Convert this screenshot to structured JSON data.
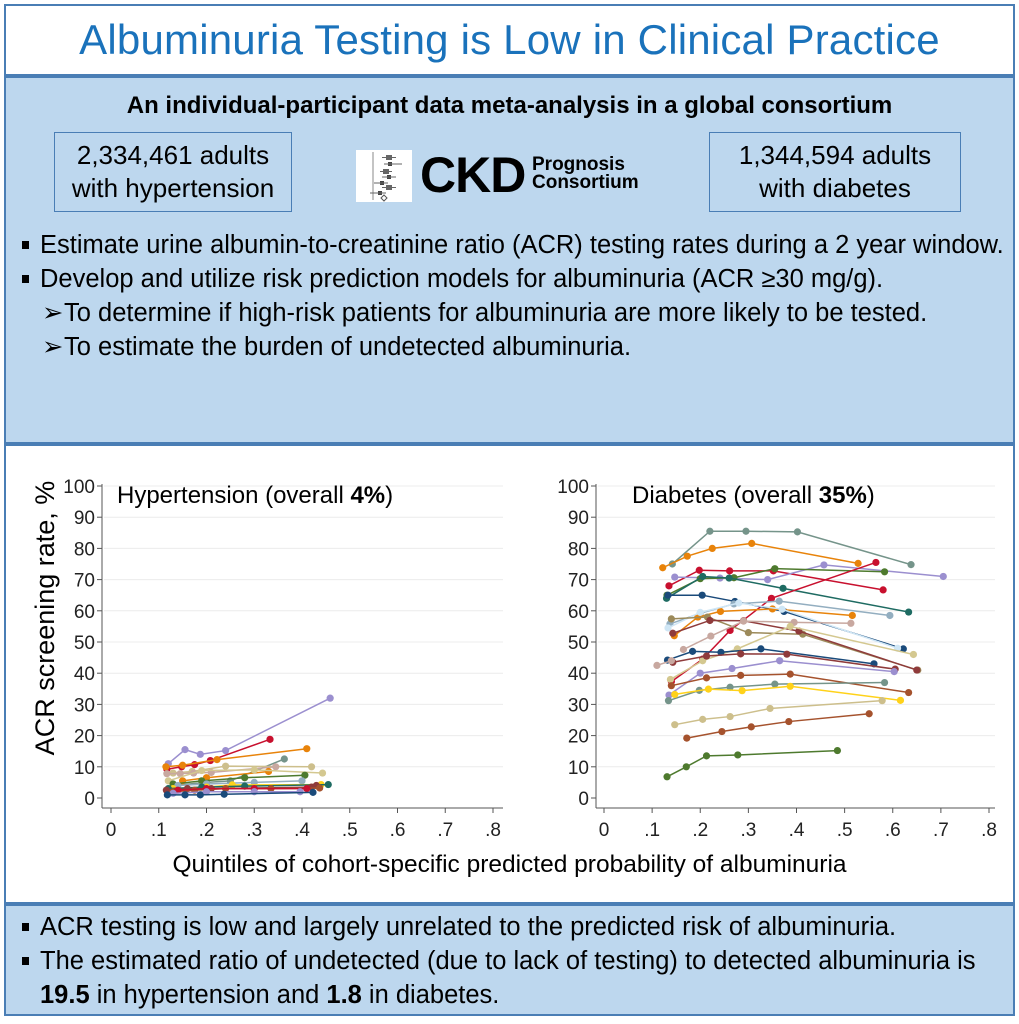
{
  "header": {
    "title": "Albuminuria Testing is Low in Clinical Practice"
  },
  "intro": {
    "subtitle": "An individual-participant data meta-analysis in a global consortium",
    "stat_hypertension": {
      "line1": "2,334,461 adults",
      "line2": "with hypertension"
    },
    "stat_diabetes": {
      "line1": "1,344,594 adults",
      "line2": "with diabetes"
    },
    "logo": {
      "main": "CKD",
      "sub1": "Prognosis",
      "sub2": "Consortium"
    },
    "bullets": [
      {
        "text": "Estimate urine albumin-to-creatinine ratio (ACR) testing rates during a 2 year window."
      },
      {
        "text": "Develop and utilize risk prediction models for albuminuria (ACR ≥30 mg/g)."
      }
    ],
    "sub_bullets": [
      {
        "arrow": "➢",
        "text": "To determine if high-risk patients for albuminuria are more likely to be tested."
      },
      {
        "arrow": "➢",
        "text": "To estimate the burden of undetected albuminuria."
      }
    ]
  },
  "chart_shared": {
    "ylabel": "ACR screening rate, %",
    "xlabel": "Quintiles of cohort-specific predicted probability of albuminuria"
  },
  "chart_data": [
    {
      "type": "line",
      "title_prefix": "Hypertension (overall ",
      "title_bold": "4%",
      "title_suffix": ")",
      "xlabel": "Quintiles of cohort-specific predicted probability of albuminuria",
      "ylabel": "ACR screening rate, %",
      "xlim": [
        0,
        0.8
      ],
      "ylim": [
        0,
        100
      ],
      "xticks": [
        0,
        0.1,
        0.2,
        0.3,
        0.4,
        0.5,
        0.6,
        0.7,
        0.8
      ],
      "xtick_labels": [
        "0",
        ".1",
        ".2",
        ".3",
        ".4",
        ".5",
        ".6",
        ".7",
        ".8"
      ],
      "yticks": [
        0,
        10,
        20,
        30,
        40,
        50,
        60,
        70,
        80,
        90,
        100
      ],
      "ytick_labels": [
        "0",
        "10",
        "20",
        "30",
        "40",
        "50",
        "60",
        "70",
        "80",
        "90",
        "100"
      ],
      "grid": true,
      "series": [
        {
          "color": "#9b8fcf",
          "x": [
            0.12,
            0.155,
            0.187,
            0.24,
            0.459
          ],
          "y": [
            11,
            15.5,
            14,
            15.2,
            32
          ]
        },
        {
          "color": "#c8102e",
          "x": [
            0.117,
            0.148,
            0.175,
            0.208,
            0.333
          ],
          "y": [
            9.2,
            10,
            10.7,
            12,
            18.8
          ]
        },
        {
          "color": "#e8830a",
          "x": [
            0.115,
            0.15,
            0.222,
            0.41
          ],
          "y": [
            10,
            10.5,
            12.3,
            15.8
          ]
        },
        {
          "color": "#75948a",
          "x": [
            0.13,
            0.2,
            0.25,
            0.363
          ],
          "y": [
            4,
            5,
            5.5,
            12.5
          ]
        },
        {
          "color": "#cdbf8c",
          "x": [
            0.13,
            0.17,
            0.24,
            0.42
          ],
          "y": [
            8,
            8.5,
            10.2,
            10
          ]
        },
        {
          "color": "#c8a8a0",
          "x": [
            0.117,
            0.145,
            0.173,
            0.21,
            0.345
          ],
          "y": [
            7.8,
            7.8,
            8,
            8.2,
            10
          ]
        },
        {
          "color": "#e8830a",
          "x": [
            0.15,
            0.2,
            0.33
          ],
          "y": [
            5.5,
            6.5,
            8.5
          ]
        },
        {
          "color": "#d4c890",
          "x": [
            0.12,
            0.19,
            0.3,
            0.443
          ],
          "y": [
            5.5,
            8.8,
            9,
            8
          ]
        },
        {
          "color": "#4e7a2e",
          "x": [
            0.13,
            0.19,
            0.28,
            0.406
          ],
          "y": [
            4.5,
            5.5,
            6.5,
            7.3
          ]
        },
        {
          "color": "#93aec0",
          "x": [
            0.14,
            0.2,
            0.3,
            0.4
          ],
          "y": [
            4,
            4.5,
            5,
            5.5
          ]
        },
        {
          "color": "#ffd21a",
          "x": [
            0.13,
            0.2,
            0.254,
            0.44
          ],
          "y": [
            3,
            3.5,
            4.2,
            4.3
          ]
        },
        {
          "color": "#1e6b62",
          "x": [
            0.12,
            0.19,
            0.28,
            0.455
          ],
          "y": [
            3,
            3.5,
            3.8,
            4.3
          ]
        },
        {
          "color": "#8f3b3b",
          "x": [
            0.116,
            0.16,
            0.21,
            0.42,
            0.43
          ],
          "y": [
            2.5,
            3,
            3,
            3.5,
            4
          ]
        },
        {
          "color": "#a5522d",
          "x": [
            0.13,
            0.175,
            0.24,
            0.335,
            0.437
          ],
          "y": [
            2,
            2.5,
            3,
            3,
            3.2
          ]
        },
        {
          "color": "#c8102e",
          "x": [
            0.14,
            0.2,
            0.3,
            0.41
          ],
          "y": [
            2.5,
            3,
            3,
            3
          ]
        },
        {
          "color": "#9b8fcf",
          "x": [
            0.13,
            0.2,
            0.3,
            0.396
          ],
          "y": [
            1.5,
            2,
            2,
            2
          ]
        },
        {
          "color": "#1a4a7a",
          "x": [
            0.118,
            0.155,
            0.187,
            0.237,
            0.423
          ],
          "y": [
            1,
            1,
            1,
            1.2,
            1.8
          ]
        }
      ]
    },
    {
      "type": "line",
      "title_prefix": "Diabetes (overall ",
      "title_bold": "35%",
      "title_suffix": ")",
      "xlabel": "Quintiles of cohort-specific predicted probability of albuminuria",
      "ylabel": "ACR screening rate, %",
      "xlim": [
        0,
        0.8
      ],
      "ylim": [
        0,
        100
      ],
      "xticks": [
        0,
        0.1,
        0.2,
        0.3,
        0.4,
        0.5,
        0.6,
        0.7,
        0.8
      ],
      "xtick_labels": [
        "0",
        ".1",
        ".2",
        ".3",
        ".4",
        ".5",
        ".6",
        ".7",
        ".8"
      ],
      "yticks": [
        0,
        10,
        20,
        30,
        40,
        50,
        60,
        70,
        80,
        90,
        100
      ],
      "ytick_labels": [
        "0",
        "10",
        "20",
        "30",
        "40",
        "50",
        "60",
        "70",
        "80",
        "90",
        "100"
      ],
      "grid": true,
      "series": [
        {
          "color": "#75948a",
          "x": [
            0.142,
            0.22,
            0.295,
            0.402,
            0.638
          ],
          "y": [
            75,
            85.5,
            85.5,
            85.3,
            74.8
          ]
        },
        {
          "color": "#e8830a",
          "x": [
            0.122,
            0.173,
            0.225,
            0.307,
            0.528
          ],
          "y": [
            73.8,
            77.5,
            80,
            81.6,
            75.2
          ]
        },
        {
          "color": "#c8102e",
          "x": [
            0.135,
            0.198,
            0.261,
            0.352,
            0.58
          ],
          "y": [
            68,
            73,
            72.8,
            72.8,
            66.7
          ]
        },
        {
          "color": "#9b8fcf",
          "x": [
            0.147,
            0.241,
            0.34,
            0.457,
            0.705
          ],
          "y": [
            70.8,
            70.5,
            70,
            74.7,
            71
          ]
        },
        {
          "color": "#4e7a2e",
          "x": [
            0.131,
            0.2,
            0.27,
            0.355,
            0.583
          ],
          "y": [
            65,
            70.3,
            70.6,
            73.5,
            72.5
          ]
        },
        {
          "color": "#1e6b62",
          "x": [
            0.13,
            0.205,
            0.26,
            0.372,
            0.633
          ],
          "y": [
            64,
            71,
            70.5,
            67.2,
            59.6
          ]
        },
        {
          "color": "#c8102e",
          "x": [
            0.14,
            0.205,
            0.262,
            0.348,
            0.565
          ],
          "y": [
            37.3,
            44.5,
            53.7,
            64,
            75.5
          ]
        },
        {
          "color": "#1a4a7a",
          "x": [
            0.133,
            0.204,
            0.272,
            0.374,
            0.622
          ],
          "y": [
            65,
            65,
            63,
            59.8,
            47.8
          ]
        },
        {
          "color": "#93aec0",
          "x": [
            0.137,
            0.2,
            0.27,
            0.364,
            0.594
          ],
          "y": [
            55.8,
            59.2,
            62.2,
            63.1,
            58.5
          ]
        },
        {
          "color": "#e8830a",
          "x": [
            0.146,
            0.195,
            0.242,
            0.35,
            0.516
          ],
          "y": [
            52,
            58,
            59.8,
            60.6,
            58.5
          ]
        },
        {
          "color": "#cfe6f5",
          "x": [
            0.133,
            0.2,
            0.28,
            0.37,
            0.61
          ],
          "y": [
            54.5,
            59.5,
            62.5,
            60.5,
            48
          ]
        },
        {
          "color": "#9c8a5a",
          "x": [
            0.14,
            0.215,
            0.3,
            0.413,
            0.652
          ],
          "y": [
            57.4,
            58,
            53,
            52.5,
            41
          ]
        },
        {
          "color": "#8f3b3b",
          "x": [
            0.143,
            0.22,
            0.29,
            0.405,
            0.65
          ],
          "y": [
            52.8,
            56.9,
            56.8,
            53.5,
            41
          ]
        },
        {
          "color": "#c8a8a0",
          "x": [
            0.165,
            0.222,
            0.29,
            0.395,
            0.513
          ],
          "y": [
            47.6,
            51.9,
            56.7,
            56.3,
            56
          ]
        },
        {
          "color": "#d4c890",
          "x": [
            0.138,
            0.205,
            0.277,
            0.387,
            0.643
          ],
          "y": [
            38,
            44,
            47.8,
            55,
            46
          ]
        },
        {
          "color": "#1a4a7a",
          "x": [
            0.132,
            0.184,
            0.243,
            0.326,
            0.561
          ],
          "y": [
            44.2,
            47,
            46.7,
            47.8,
            43
          ]
        },
        {
          "color": "#8f3b3b",
          "x": [
            0.143,
            0.213,
            0.284,
            0.38,
            0.605
          ],
          "y": [
            43.5,
            45.5,
            46.2,
            46.1,
            41.3
          ]
        },
        {
          "color": "#c8a8a0",
          "x": [
            0.11,
            0.14
          ],
          "y": [
            42.5,
            44
          ]
        },
        {
          "color": "#9b8fcf",
          "x": [
            0.135,
            0.2,
            0.266,
            0.365,
            0.603
          ],
          "y": [
            33,
            40,
            41.5,
            44,
            40.5
          ]
        },
        {
          "color": "#a5522d",
          "x": [
            0.14,
            0.213,
            0.284,
            0.387,
            0.633
          ],
          "y": [
            36,
            38.5,
            39.3,
            39.7,
            33.8
          ]
        },
        {
          "color": "#75948a",
          "x": [
            0.134,
            0.198,
            0.262,
            0.355,
            0.583
          ],
          "y": [
            31.2,
            34.5,
            35.5,
            36.5,
            37
          ]
        },
        {
          "color": "#ffd21a",
          "x": [
            0.147,
            0.217,
            0.287,
            0.387,
            0.616
          ],
          "y": [
            33.2,
            34.9,
            34.4,
            35.8,
            31.3
          ]
        },
        {
          "color": "#cdbf8c",
          "x": [
            0.147,
            0.205,
            0.262,
            0.345,
            0.578
          ],
          "y": [
            23.5,
            25.2,
            26.1,
            28.7,
            31.2
          ]
        },
        {
          "color": "#a5522d",
          "x": [
            0.172,
            0.245,
            0.306,
            0.384,
            0.551
          ],
          "y": [
            19.2,
            21.3,
            22.8,
            24.5,
            27
          ]
        },
        {
          "color": "#4e7a2e",
          "x": [
            0.131,
            0.171,
            0.213,
            0.278,
            0.485
          ],
          "y": [
            6.8,
            10,
            13.5,
            13.8,
            15.2
          ]
        }
      ]
    }
  ],
  "conclusions": {
    "bullet1": "ACR testing is low and largely unrelated to the predicted risk of albuminuria.",
    "bullet2_part1": "The estimated ratio of undetected (due to lack of testing) to detected albuminuria is ",
    "bullet2_value1": "19.5",
    "bullet2_part2": " in hypertension and ",
    "bullet2_value2": "1.8",
    "bullet2_part3": " in diabetes."
  }
}
